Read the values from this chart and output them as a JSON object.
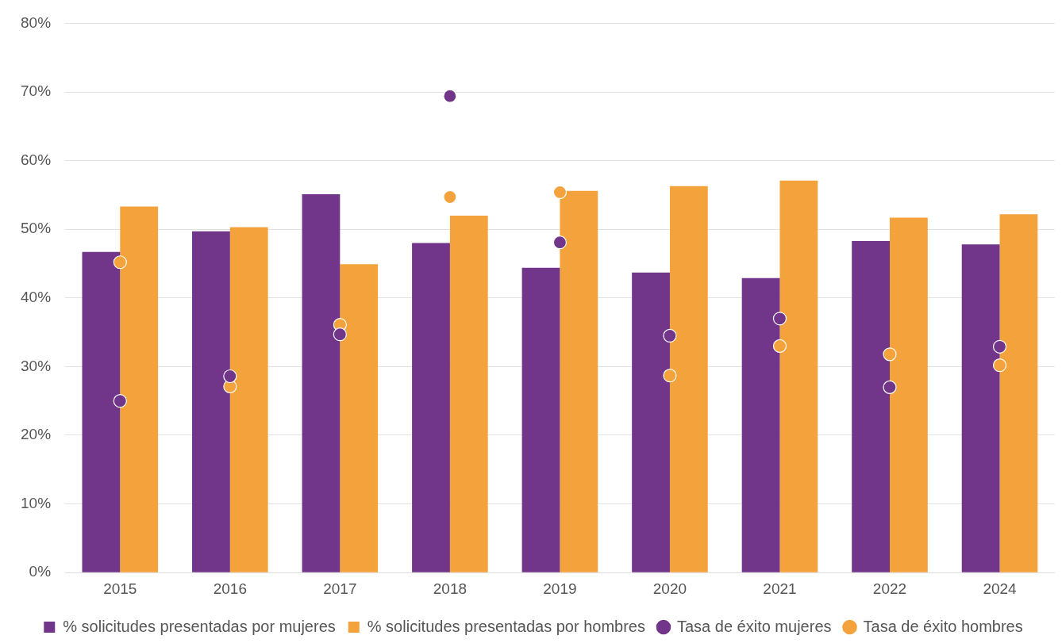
{
  "chart_data": {
    "type": "bar",
    "categories": [
      "2015",
      "2016",
      "2017",
      "2018",
      "2019",
      "2020",
      "2021",
      "2022",
      "2024"
    ],
    "series": [
      {
        "name": "% solicitudes presentadas por mujeres",
        "color": "#71368a",
        "values": [
          46.7,
          49.7,
          55.1,
          48.0,
          44.4,
          43.7,
          42.9,
          48.3,
          47.8
        ]
      },
      {
        "name": "% solicitudes presentadas por hombres",
        "color": "#f4a23b",
        "values": [
          53.3,
          50.3,
          44.9,
          52.0,
          55.6,
          56.3,
          57.1,
          51.7,
          52.2
        ]
      },
      {
        "name": "Tasa de éxito mujeres",
        "type": "scatter",
        "color": "#71368a",
        "values": [
          25.0,
          28.6,
          34.7,
          69.4,
          48.1,
          34.5,
          37.0,
          27.0,
          32.9
        ]
      },
      {
        "name": "Tasa de éxito hombres",
        "type": "scatter",
        "color": "#f4a23b",
        "values": [
          45.2,
          27.1,
          36.1,
          54.7,
          55.4,
          28.7,
          33.0,
          31.8,
          30.2
        ]
      }
    ],
    "ylim": [
      0,
      80
    ],
    "yticks": [
      {
        "value": 0,
        "label": "0%"
      },
      {
        "value": 10,
        "label": "10%"
      },
      {
        "value": 20,
        "label": "20%"
      },
      {
        "value": 30,
        "label": "30%"
      },
      {
        "value": 40,
        "label": "40%"
      },
      {
        "value": 50,
        "label": "50%"
      },
      {
        "value": 60,
        "label": "60%"
      },
      {
        "value": 70,
        "label": "70%"
      },
      {
        "value": 80,
        "label": "80%"
      }
    ],
    "grid": "y",
    "legend": "bottom",
    "marker": "circle"
  }
}
